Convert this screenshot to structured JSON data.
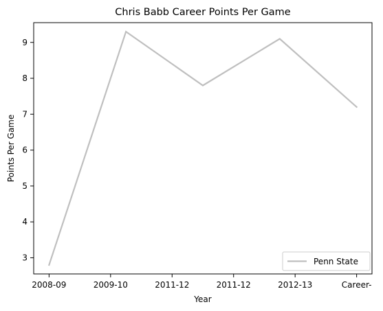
{
  "chart_data": {
    "type": "line",
    "title": "Chris Babb Career Points Per Game",
    "xlabel": "Year",
    "ylabel": "Points Per Game",
    "categories": [
      "2008-09",
      "2009-10",
      "2011-12",
      "2011-12",
      "2012-13",
      "Career-"
    ],
    "ylim": [
      2.55,
      9.55
    ],
    "yticks": [
      3,
      4,
      5,
      6,
      7,
      8,
      9
    ],
    "grid": false,
    "legend_position": "bottom-right",
    "series": [
      {
        "name": "Penn State",
        "color": "#bfbfbf",
        "x": [
          0,
          1.25,
          2.5,
          3.75,
          5.0
        ],
        "values": [
          2.8,
          9.3,
          7.8,
          9.1,
          7.2
        ]
      }
    ]
  }
}
